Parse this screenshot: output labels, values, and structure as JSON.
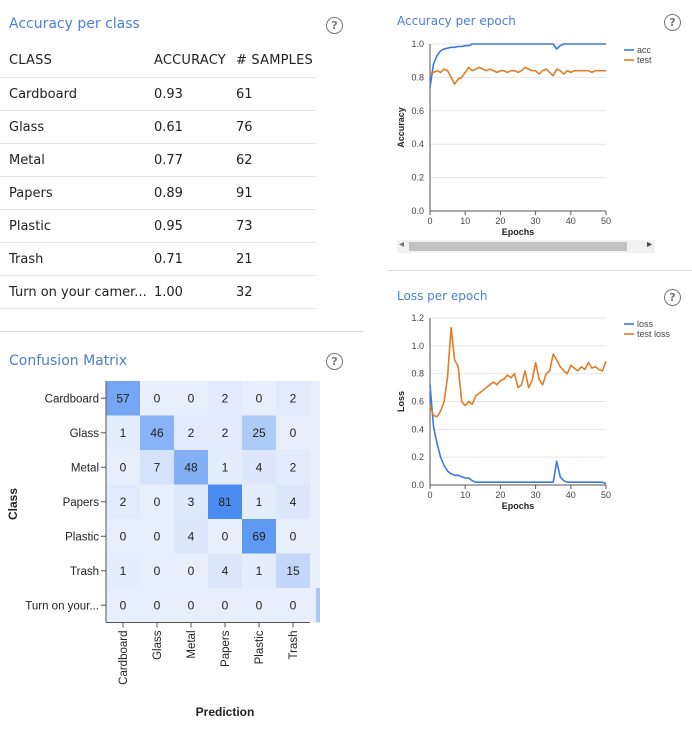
{
  "panels": {
    "accuracy_per_class": {
      "title": "Accuracy per class"
    },
    "accuracy_per_epoch": {
      "title": "Accuracy per epoch"
    },
    "loss_per_epoch": {
      "title": "Loss per epoch"
    },
    "confusion_matrix": {
      "title": "Confusion Matrix"
    },
    "help_glyph": "?"
  },
  "table": {
    "headers": [
      "CLASS",
      "ACCURACY",
      "# SAMPLES"
    ],
    "rows": [
      [
        "Cardboard",
        "0.93",
        "61"
      ],
      [
        "Glass",
        "0.61",
        "76"
      ],
      [
        "Metal",
        "0.77",
        "62"
      ],
      [
        "Papers",
        "0.89",
        "91"
      ],
      [
        "Plastic",
        "0.95",
        "73"
      ],
      [
        "Trash",
        "0.71",
        "21"
      ],
      [
        "Turn on your camer...",
        "1.00",
        "32"
      ]
    ]
  },
  "colors": {
    "accent": "#4a7fd4",
    "series_blue": "#3b78e7",
    "series_orange": "#e37c22",
    "matrix_dark": "#4b8cf0",
    "matrix_light": "#e8effc"
  },
  "scrollbar": {
    "left_arrow": "◂",
    "right_arrow": "▸"
  },
  "chart_data": [
    {
      "type": "line",
      "title": "Accuracy per epoch",
      "xlabel": "Epochs",
      "ylabel": "Accuracy",
      "xlim": [
        0,
        50
      ],
      "ylim": [
        0,
        1.0
      ],
      "xticks": [
        0,
        10,
        20,
        30,
        40,
        50
      ],
      "yticks": [
        0.0,
        0.2,
        0.4,
        0.6,
        0.8,
        1.0
      ],
      "legend": "top-right",
      "series": [
        {
          "name": "acc",
          "color": "#3b78e7",
          "x": [
            0,
            1,
            2,
            3,
            4,
            5,
            6,
            7,
            8,
            9,
            10,
            11,
            12,
            13,
            14,
            15,
            16,
            17,
            18,
            19,
            20,
            21,
            22,
            23,
            24,
            25,
            26,
            27,
            28,
            29,
            30,
            31,
            32,
            33,
            34,
            35,
            36,
            37,
            38,
            39,
            40,
            41,
            42,
            43,
            44,
            45,
            46,
            47,
            48,
            49,
            50
          ],
          "values": [
            0.74,
            0.88,
            0.93,
            0.96,
            0.97,
            0.975,
            0.98,
            0.98,
            0.985,
            0.985,
            0.99,
            0.99,
            1.0,
            1.0,
            1.0,
            1.0,
            1.0,
            1.0,
            1.0,
            1.0,
            1.0,
            1.0,
            1.0,
            1.0,
            1.0,
            1.0,
            1.0,
            1.0,
            1.0,
            1.0,
            1.0,
            1.0,
            1.0,
            1.0,
            1.0,
            1.0,
            0.97,
            0.99,
            1.0,
            1.0,
            1.0,
            1.0,
            1.0,
            1.0,
            1.0,
            1.0,
            1.0,
            1.0,
            1.0,
            1.0,
            1.0
          ]
        },
        {
          "name": "test",
          "color": "#e37c22",
          "x": [
            0,
            1,
            2,
            3,
            4,
            5,
            6,
            7,
            8,
            9,
            10,
            11,
            12,
            13,
            14,
            15,
            16,
            17,
            18,
            19,
            20,
            21,
            22,
            23,
            24,
            25,
            26,
            27,
            28,
            29,
            30,
            31,
            32,
            33,
            34,
            35,
            36,
            37,
            38,
            39,
            40,
            41,
            42,
            43,
            44,
            45,
            46,
            47,
            48,
            49,
            50
          ],
          "values": [
            0.82,
            0.83,
            0.84,
            0.83,
            0.85,
            0.84,
            0.8,
            0.76,
            0.79,
            0.8,
            0.83,
            0.86,
            0.84,
            0.85,
            0.86,
            0.85,
            0.84,
            0.85,
            0.84,
            0.83,
            0.84,
            0.84,
            0.83,
            0.84,
            0.84,
            0.83,
            0.84,
            0.86,
            0.85,
            0.84,
            0.84,
            0.82,
            0.84,
            0.85,
            0.83,
            0.81,
            0.85,
            0.84,
            0.82,
            0.84,
            0.83,
            0.84,
            0.84,
            0.84,
            0.84,
            0.84,
            0.83,
            0.84,
            0.84,
            0.84,
            0.84
          ]
        }
      ]
    },
    {
      "type": "line",
      "title": "Loss per epoch",
      "xlabel": "Epochs",
      "ylabel": "Loss",
      "xlim": [
        0,
        50
      ],
      "ylim": [
        0,
        1.2
      ],
      "xticks": [
        0,
        10,
        20,
        30,
        40,
        50
      ],
      "yticks": [
        0.0,
        0.2,
        0.4,
        0.6,
        0.8,
        1.0,
        1.2
      ],
      "legend": "top-right",
      "series": [
        {
          "name": "loss",
          "color": "#3b78e7",
          "x": [
            0,
            1,
            2,
            3,
            4,
            5,
            6,
            7,
            8,
            9,
            10,
            11,
            12,
            13,
            14,
            15,
            16,
            17,
            18,
            19,
            20,
            21,
            22,
            23,
            24,
            25,
            26,
            27,
            28,
            29,
            30,
            31,
            32,
            33,
            34,
            35,
            36,
            37,
            38,
            39,
            40,
            41,
            42,
            43,
            44,
            45,
            46,
            47,
            48,
            49,
            50
          ],
          "values": [
            0.72,
            0.42,
            0.3,
            0.2,
            0.14,
            0.1,
            0.08,
            0.07,
            0.07,
            0.06,
            0.05,
            0.05,
            0.03,
            0.02,
            0.02,
            0.02,
            0.02,
            0.02,
            0.02,
            0.02,
            0.02,
            0.02,
            0.02,
            0.02,
            0.02,
            0.02,
            0.02,
            0.02,
            0.02,
            0.02,
            0.02,
            0.02,
            0.02,
            0.02,
            0.02,
            0.02,
            0.17,
            0.06,
            0.03,
            0.02,
            0.02,
            0.02,
            0.02,
            0.02,
            0.02,
            0.02,
            0.02,
            0.02,
            0.02,
            0.02,
            0.01
          ]
        },
        {
          "name": "test loss",
          "color": "#e37c22",
          "x": [
            0,
            1,
            2,
            3,
            4,
            5,
            6,
            7,
            8,
            9,
            10,
            11,
            12,
            13,
            14,
            15,
            16,
            17,
            18,
            19,
            20,
            21,
            22,
            23,
            24,
            25,
            26,
            27,
            28,
            29,
            30,
            31,
            32,
            33,
            34,
            35,
            36,
            37,
            38,
            39,
            40,
            41,
            42,
            43,
            44,
            45,
            46,
            47,
            48,
            49,
            50
          ],
          "values": [
            0.57,
            0.5,
            0.49,
            0.53,
            0.6,
            0.78,
            1.13,
            0.9,
            0.85,
            0.6,
            0.57,
            0.6,
            0.58,
            0.64,
            0.66,
            0.68,
            0.7,
            0.72,
            0.74,
            0.72,
            0.75,
            0.76,
            0.79,
            0.77,
            0.8,
            0.7,
            0.72,
            0.82,
            0.7,
            0.75,
            0.88,
            0.76,
            0.72,
            0.8,
            0.82,
            0.94,
            0.9,
            0.85,
            0.82,
            0.8,
            0.86,
            0.84,
            0.82,
            0.85,
            0.83,
            0.88,
            0.84,
            0.85,
            0.83,
            0.82,
            0.89
          ]
        }
      ]
    },
    {
      "type": "heatmap",
      "title": "Confusion Matrix",
      "xlabel": "Prediction",
      "ylabel": "Class",
      "categories": [
        "Cardboard",
        "Glass",
        "Metal",
        "Papers",
        "Plastic",
        "Trash",
        "Turn on your..."
      ],
      "x_categories": [
        "Cardboard",
        "Glass",
        "Metal",
        "Papers",
        "Plastic",
        "Trash"
      ],
      "values": [
        [
          57,
          0,
          0,
          2,
          0,
          2
        ],
        [
          1,
          46,
          2,
          2,
          25,
          0
        ],
        [
          0,
          7,
          48,
          1,
          4,
          2
        ],
        [
          2,
          0,
          3,
          81,
          1,
          4
        ],
        [
          0,
          0,
          4,
          0,
          69,
          0
        ],
        [
          1,
          0,
          0,
          4,
          1,
          15
        ],
        [
          0,
          0,
          0,
          0,
          0,
          0
        ]
      ]
    }
  ]
}
